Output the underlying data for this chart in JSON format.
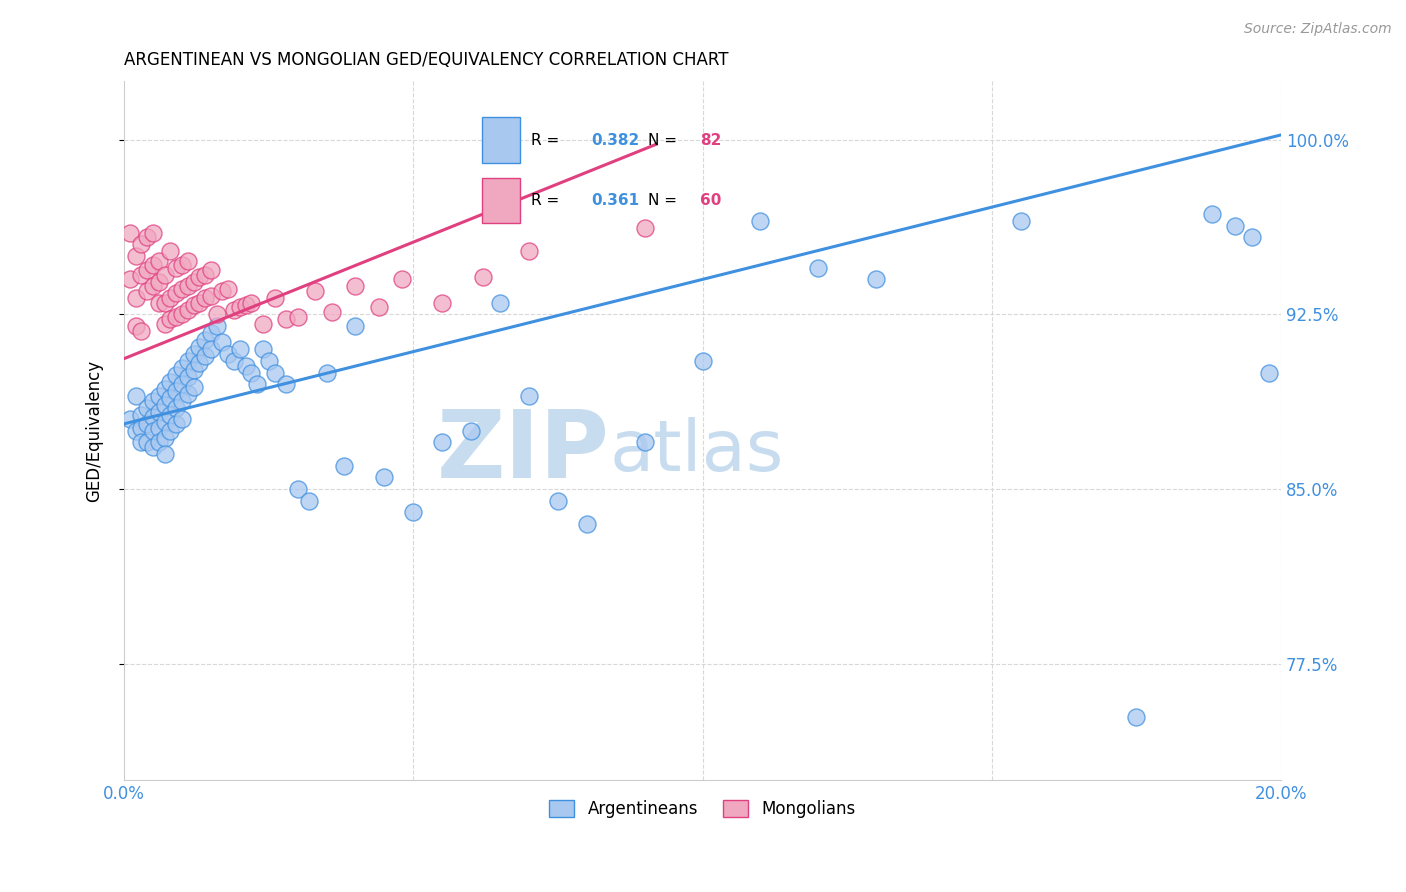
{
  "title": "ARGENTINEAN VS MONGOLIAN GED/EQUIVALENCY CORRELATION CHART",
  "source": "Source: ZipAtlas.com",
  "ylabel": "GED/Equivalency",
  "ytick_labels": [
    "77.5%",
    "85.0%",
    "92.5%",
    "100.0%"
  ],
  "ytick_values": [
    0.775,
    0.85,
    0.925,
    1.0
  ],
  "xlim": [
    0.0,
    0.2
  ],
  "ylim": [
    0.725,
    1.025
  ],
  "legend_blue_R": "R = 0.382",
  "legend_blue_N": "N = 82",
  "legend_pink_R": "R = 0.361",
  "legend_pink_N": "N = 60",
  "blue_color": "#A8C8F0",
  "pink_color": "#F0A8C0",
  "blue_line_color": "#4090E0",
  "pink_line_color": "#E04080",
  "legend_R_color": "#4090E0",
  "legend_N_color": "#E04080",
  "watermark_zip": "ZIP",
  "watermark_atlas": "atlas",
  "watermark_color": "#C8DCF0",
  "blue_line_x0": 0.0,
  "blue_line_y0": 0.878,
  "blue_line_x1": 0.2,
  "blue_line_y1": 1.002,
  "pink_line_x0": 0.0,
  "pink_line_y0": 0.906,
  "pink_line_x1": 0.092,
  "pink_line_y1": 0.998,
  "blue_points_x": [
    0.001,
    0.002,
    0.002,
    0.003,
    0.003,
    0.003,
    0.004,
    0.004,
    0.004,
    0.005,
    0.005,
    0.005,
    0.005,
    0.006,
    0.006,
    0.006,
    0.006,
    0.007,
    0.007,
    0.007,
    0.007,
    0.007,
    0.008,
    0.008,
    0.008,
    0.008,
    0.009,
    0.009,
    0.009,
    0.009,
    0.01,
    0.01,
    0.01,
    0.01,
    0.011,
    0.011,
    0.011,
    0.012,
    0.012,
    0.012,
    0.013,
    0.013,
    0.014,
    0.014,
    0.015,
    0.015,
    0.016,
    0.017,
    0.018,
    0.019,
    0.02,
    0.021,
    0.022,
    0.023,
    0.024,
    0.025,
    0.026,
    0.028,
    0.03,
    0.032,
    0.035,
    0.038,
    0.04,
    0.045,
    0.05,
    0.055,
    0.06,
    0.065,
    0.07,
    0.075,
    0.08,
    0.09,
    0.1,
    0.11,
    0.12,
    0.13,
    0.155,
    0.175,
    0.188,
    0.192,
    0.195,
    0.198
  ],
  "blue_points_y": [
    0.88,
    0.875,
    0.89,
    0.882,
    0.876,
    0.87,
    0.885,
    0.878,
    0.87,
    0.888,
    0.881,
    0.875,
    0.868,
    0.89,
    0.883,
    0.876,
    0.87,
    0.893,
    0.886,
    0.879,
    0.872,
    0.865,
    0.896,
    0.889,
    0.882,
    0.875,
    0.899,
    0.892,
    0.885,
    0.878,
    0.902,
    0.895,
    0.888,
    0.88,
    0.905,
    0.898,
    0.891,
    0.908,
    0.901,
    0.894,
    0.911,
    0.904,
    0.914,
    0.907,
    0.917,
    0.91,
    0.92,
    0.913,
    0.908,
    0.905,
    0.91,
    0.903,
    0.9,
    0.895,
    0.91,
    0.905,
    0.9,
    0.895,
    0.85,
    0.845,
    0.9,
    0.86,
    0.92,
    0.855,
    0.84,
    0.87,
    0.875,
    0.93,
    0.89,
    0.845,
    0.835,
    0.87,
    0.905,
    0.965,
    0.945,
    0.94,
    0.965,
    0.752,
    0.968,
    0.963,
    0.958,
    0.9
  ],
  "pink_points_x": [
    0.001,
    0.001,
    0.002,
    0.002,
    0.002,
    0.003,
    0.003,
    0.003,
    0.004,
    0.004,
    0.004,
    0.005,
    0.005,
    0.005,
    0.006,
    0.006,
    0.006,
    0.007,
    0.007,
    0.007,
    0.008,
    0.008,
    0.008,
    0.009,
    0.009,
    0.009,
    0.01,
    0.01,
    0.01,
    0.011,
    0.011,
    0.011,
    0.012,
    0.012,
    0.013,
    0.013,
    0.014,
    0.014,
    0.015,
    0.015,
    0.016,
    0.017,
    0.018,
    0.019,
    0.02,
    0.021,
    0.022,
    0.024,
    0.026,
    0.028,
    0.03,
    0.033,
    0.036,
    0.04,
    0.044,
    0.048,
    0.055,
    0.062,
    0.07,
    0.09
  ],
  "pink_points_y": [
    0.94,
    0.96,
    0.932,
    0.95,
    0.92,
    0.942,
    0.955,
    0.918,
    0.944,
    0.935,
    0.958,
    0.946,
    0.937,
    0.96,
    0.948,
    0.939,
    0.93,
    0.93,
    0.921,
    0.942,
    0.932,
    0.952,
    0.923,
    0.934,
    0.924,
    0.945,
    0.925,
    0.936,
    0.946,
    0.927,
    0.937,
    0.948,
    0.929,
    0.939,
    0.93,
    0.941,
    0.932,
    0.942,
    0.933,
    0.944,
    0.925,
    0.935,
    0.936,
    0.927,
    0.928,
    0.929,
    0.93,
    0.921,
    0.932,
    0.923,
    0.924,
    0.935,
    0.926,
    0.937,
    0.928,
    0.94,
    0.93,
    0.941,
    0.952,
    0.962
  ]
}
